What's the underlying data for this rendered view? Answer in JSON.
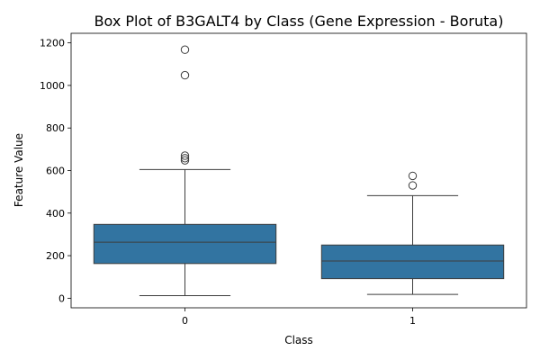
{
  "chart_data": {
    "type": "box",
    "title": "Box Plot of B3GALT4 by Class (Gene Expression - Boruta)",
    "xlabel": "Class",
    "ylabel": "Feature Value",
    "categories": [
      "0",
      "1"
    ],
    "ylim": [
      -45,
      1245
    ],
    "yticks": [
      0,
      200,
      400,
      600,
      800,
      1000,
      1200
    ],
    "grid": false,
    "box_color": "#3274a1",
    "boxes": [
      {
        "category": "0",
        "whisker_low": 12,
        "q1": 163,
        "median": 263,
        "q3": 347,
        "whisker_high": 605,
        "outliers": [
          648,
          658,
          670,
          1048,
          1168
        ]
      },
      {
        "category": "1",
        "whisker_low": 18,
        "q1": 92,
        "median": 175,
        "q3": 250,
        "whisker_high": 482,
        "outliers": [
          530,
          575
        ]
      }
    ]
  }
}
